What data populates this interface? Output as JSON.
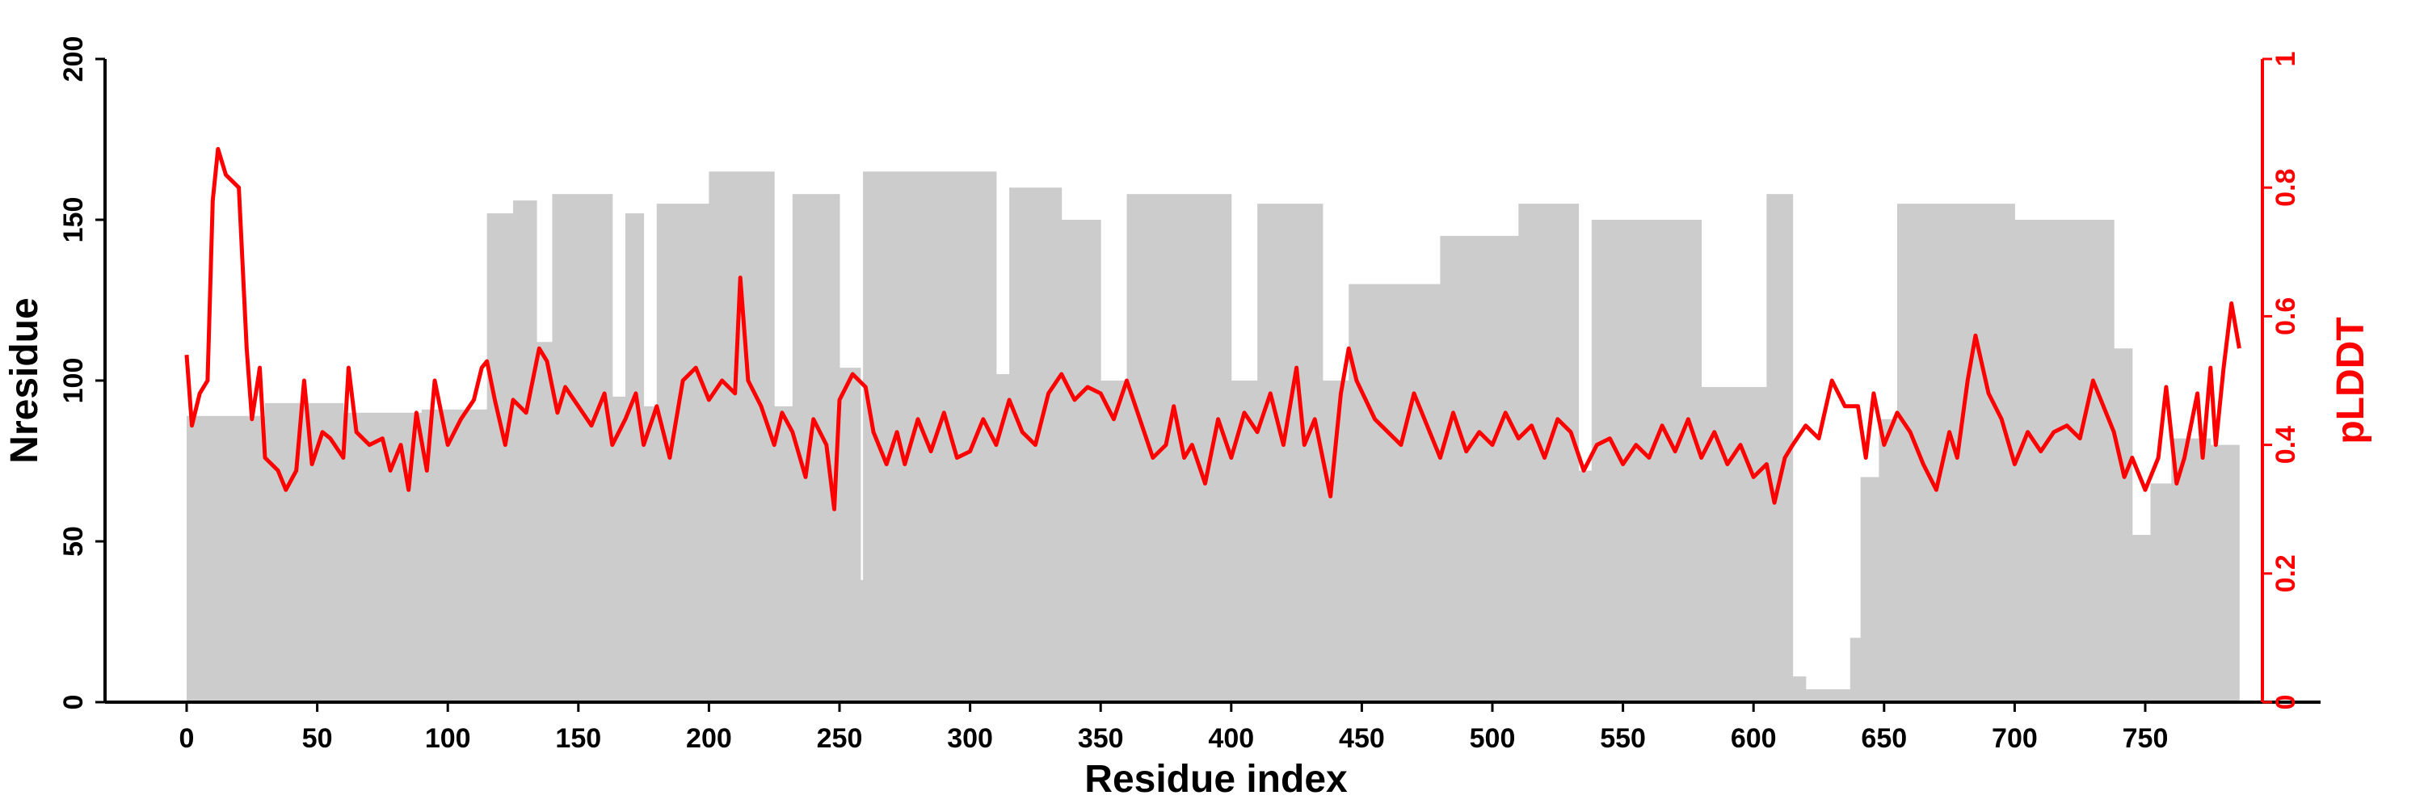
{
  "chart_data": {
    "type": "bar+line",
    "xlabel": "Residue index",
    "ylabel": "Nresidue",
    "y2label": "pLDDT",
    "xlim": [
      0,
      786
    ],
    "ylim": [
      0,
      200
    ],
    "y2lim": [
      0,
      1
    ],
    "xticks": [
      "0",
      "50",
      "100",
      "150",
      "200",
      "250",
      "300",
      "350",
      "400",
      "450",
      "500",
      "550",
      "600",
      "650",
      "700",
      "750"
    ],
    "yticks": [
      "0",
      "50",
      "100",
      "150",
      "200"
    ],
    "y2ticks": [
      "0",
      "0.2",
      "0.4",
      "0.6",
      "0.8",
      "1"
    ],
    "colors": {
      "bars": "#cccccc",
      "line": "#ff0000",
      "axis": "#000000",
      "axis2": "#ff0000"
    },
    "nresidue_segments": [
      [
        0,
        30,
        89
      ],
      [
        30,
        60,
        93
      ],
      [
        60,
        90,
        90
      ],
      [
        90,
        115,
        91
      ],
      [
        115,
        125,
        152
      ],
      [
        125,
        134,
        156
      ],
      [
        134,
        140,
        112
      ],
      [
        140,
        163,
        158
      ],
      [
        163,
        168,
        95
      ],
      [
        168,
        175,
        152
      ],
      [
        175,
        180,
        92
      ],
      [
        180,
        200,
        155
      ],
      [
        200,
        225,
        165
      ],
      [
        225,
        232,
        92
      ],
      [
        232,
        250,
        158
      ],
      [
        250,
        258,
        104
      ],
      [
        258,
        259,
        38
      ],
      [
        259,
        310,
        165
      ],
      [
        310,
        315,
        102
      ],
      [
        315,
        335,
        160
      ],
      [
        335,
        350,
        150
      ],
      [
        350,
        360,
        100
      ],
      [
        360,
        400,
        158
      ],
      [
        400,
        410,
        100
      ],
      [
        410,
        435,
        155
      ],
      [
        435,
        445,
        100
      ],
      [
        445,
        480,
        130
      ],
      [
        480,
        510,
        145
      ],
      [
        510,
        533,
        155
      ],
      [
        533,
        538,
        72
      ],
      [
        538,
        580,
        150
      ],
      [
        580,
        605,
        98
      ],
      [
        605,
        615,
        158
      ],
      [
        615,
        620,
        8
      ],
      [
        620,
        637,
        4
      ],
      [
        637,
        641,
        20
      ],
      [
        641,
        648,
        70
      ],
      [
        648,
        655,
        88
      ],
      [
        655,
        700,
        155
      ],
      [
        700,
        738,
        150
      ],
      [
        738,
        745,
        110
      ],
      [
        745,
        752,
        52
      ],
      [
        752,
        760,
        68
      ],
      [
        760,
        775,
        82
      ],
      [
        775,
        786,
        80
      ]
    ],
    "plddt": {
      "x": [
        0,
        2,
        5,
        8,
        10,
        12,
        15,
        20,
        23,
        25,
        28,
        30,
        35,
        38,
        42,
        45,
        48,
        52,
        55,
        60,
        62,
        65,
        70,
        75,
        78,
        82,
        85,
        88,
        92,
        95,
        100,
        105,
        110,
        113,
        115,
        118,
        122,
        125,
        130,
        135,
        138,
        142,
        145,
        150,
        155,
        160,
        163,
        168,
        172,
        175,
        180,
        185,
        190,
        195,
        200,
        205,
        210,
        212,
        215,
        220,
        225,
        228,
        232,
        237,
        240,
        245,
        248,
        250,
        255,
        260,
        263,
        268,
        272,
        275,
        280,
        285,
        290,
        295,
        300,
        305,
        310,
        315,
        320,
        325,
        330,
        335,
        340,
        345,
        350,
        355,
        360,
        365,
        370,
        375,
        378,
        382,
        385,
        390,
        395,
        400,
        405,
        410,
        415,
        420,
        425,
        428,
        432,
        438,
        442,
        445,
        448,
        455,
        460,
        465,
        470,
        475,
        480,
        485,
        490,
        495,
        500,
        505,
        510,
        515,
        520,
        525,
        530,
        535,
        540,
        545,
        550,
        555,
        560,
        565,
        570,
        575,
        580,
        585,
        590,
        595,
        600,
        605,
        608,
        612,
        615,
        620,
        625,
        630,
        635,
        640,
        643,
        646,
        650,
        655,
        660,
        665,
        670,
        675,
        678,
        682,
        685,
        690,
        695,
        700,
        705,
        710,
        715,
        720,
        725,
        730,
        735,
        738,
        742,
        745,
        750,
        755,
        758,
        762,
        765,
        770,
        772,
        775,
        777,
        780,
        783,
        786
      ],
      "y": [
        0.54,
        0.43,
        0.48,
        0.5,
        0.78,
        0.86,
        0.82,
        0.8,
        0.55,
        0.44,
        0.52,
        0.38,
        0.36,
        0.33,
        0.36,
        0.5,
        0.37,
        0.42,
        0.41,
        0.38,
        0.52,
        0.42,
        0.4,
        0.41,
        0.36,
        0.4,
        0.33,
        0.45,
        0.36,
        0.5,
        0.4,
        0.44,
        0.47,
        0.52,
        0.53,
        0.47,
        0.4,
        0.47,
        0.45,
        0.55,
        0.53,
        0.45,
        0.49,
        0.46,
        0.43,
        0.48,
        0.4,
        0.44,
        0.48,
        0.4,
        0.46,
        0.38,
        0.5,
        0.52,
        0.47,
        0.5,
        0.48,
        0.66,
        0.5,
        0.46,
        0.4,
        0.45,
        0.42,
        0.35,
        0.44,
        0.4,
        0.3,
        0.47,
        0.51,
        0.49,
        0.42,
        0.37,
        0.42,
        0.37,
        0.44,
        0.39,
        0.45,
        0.38,
        0.39,
        0.44,
        0.4,
        0.47,
        0.42,
        0.4,
        0.48,
        0.51,
        0.47,
        0.49,
        0.48,
        0.44,
        0.5,
        0.44,
        0.38,
        0.4,
        0.46,
        0.38,
        0.4,
        0.34,
        0.44,
        0.38,
        0.45,
        0.42,
        0.48,
        0.4,
        0.52,
        0.4,
        0.44,
        0.32,
        0.48,
        0.55,
        0.5,
        0.44,
        0.42,
        0.4,
        0.48,
        0.43,
        0.38,
        0.45,
        0.39,
        0.42,
        0.4,
        0.45,
        0.41,
        0.43,
        0.38,
        0.44,
        0.42,
        0.36,
        0.4,
        0.41,
        0.37,
        0.4,
        0.38,
        0.43,
        0.39,
        0.44,
        0.38,
        0.42,
        0.37,
        0.4,
        0.35,
        0.37,
        0.31,
        0.38,
        0.4,
        0.43,
        0.41,
        0.5,
        0.46,
        0.46,
        0.38,
        0.48,
        0.4,
        0.45,
        0.42,
        0.37,
        0.33,
        0.42,
        0.38,
        0.5,
        0.57,
        0.48,
        0.44,
        0.37,
        0.42,
        0.39,
        0.42,
        0.43,
        0.41,
        0.5,
        0.45,
        0.42,
        0.35,
        0.38,
        0.33,
        0.38,
        0.49,
        0.34,
        0.38,
        0.48,
        0.38,
        0.52,
        0.4,
        0.52,
        0.62,
        0.55
      ]
    }
  }
}
